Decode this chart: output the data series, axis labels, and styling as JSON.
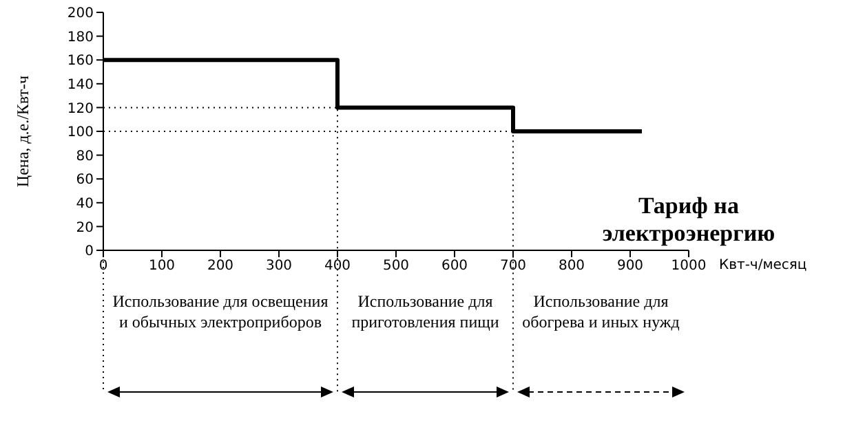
{
  "chart_data": {
    "type": "step",
    "title": "Тариф на электроэнергию",
    "xlabel": "Квт-ч/месяц",
    "ylabel": "Цена, д.е./Квт-ч",
    "x": [
      0,
      400,
      700,
      920
    ],
    "series": [
      {
        "color": "#000000",
        "values": [
          160,
          120,
          100,
          100
        ]
      }
    ],
    "xlim": [
      0,
      1000
    ],
    "xticks": [
      0,
      100,
      200,
      300,
      400,
      500,
      600,
      700,
      800,
      900,
      1000
    ],
    "ylim": [
      0,
      200
    ],
    "yticks": [
      0,
      20,
      40,
      60,
      80,
      100,
      120,
      140,
      160,
      180,
      200
    ],
    "marker": "none",
    "line_style": "solid",
    "ref_lines": [
      {
        "axis": "y",
        "value": 120,
        "color": "#000000",
        "line_style": "dotted"
      },
      {
        "axis": "y",
        "value": 100,
        "color": "#000000",
        "line_style": "dotted"
      },
      {
        "axis": "x",
        "value": 400,
        "color": "#000000",
        "line_style": "dotted"
      },
      {
        "axis": "x",
        "value": 700,
        "color": "#000000",
        "line_style": "dotted"
      }
    ],
    "annotations": [
      "Использование для освещения и обычных электроприборов",
      "Использование для приготовления пищи",
      "Использование для обогрева и иных нужд"
    ]
  }
}
